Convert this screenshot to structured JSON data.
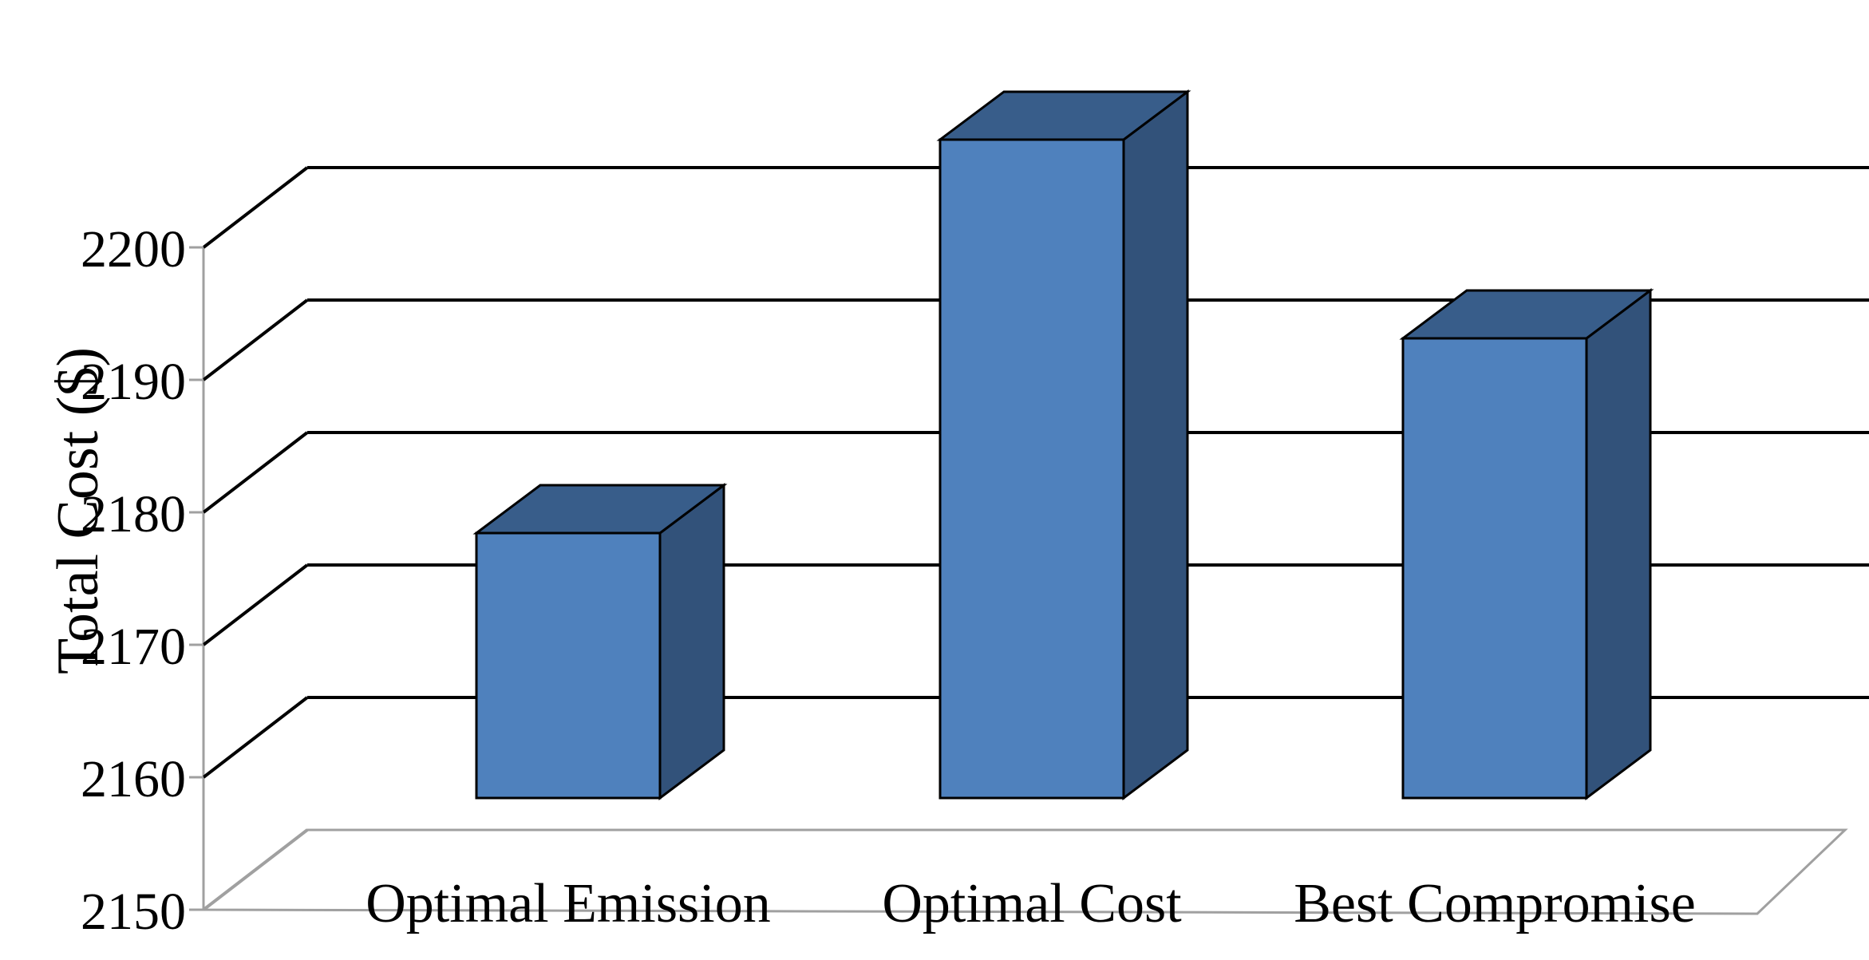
{
  "chart_data": {
    "type": "bar",
    "style": "3d-column",
    "categories": [
      "Optimal Emission",
      "Optimal Cost",
      "Best Compromise"
    ],
    "values": [
      2170,
      2199.7,
      2184.7
    ],
    "title": "",
    "xlabel": "",
    "ylabel": "Total Cost ($)",
    "ylim": [
      2150,
      2200
    ],
    "yticks": [
      2150,
      2160,
      2170,
      2180,
      2190,
      2200
    ],
    "grid": true,
    "legend": "none",
    "colors": {
      "bar_front": "#4f81bd",
      "bar_top": "#385d8a",
      "bar_side": "#32527a",
      "bar_outline": "#000000",
      "gridline": "#000000",
      "floor": "#a0a0a0"
    }
  }
}
